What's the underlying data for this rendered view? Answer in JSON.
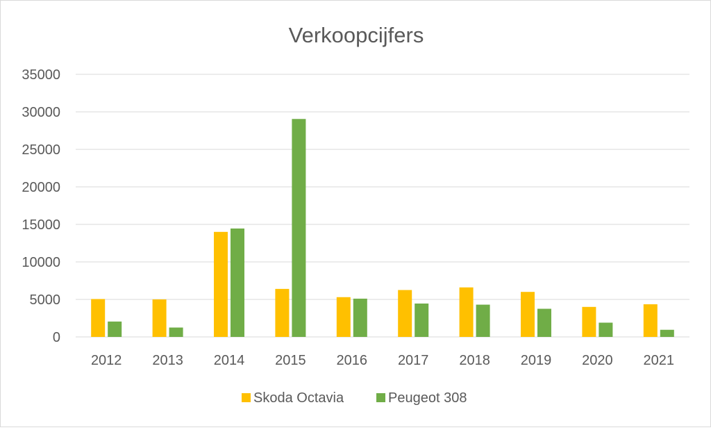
{
  "chart_data": {
    "type": "bar",
    "title": "Verkoopcijfers",
    "xlabel": "",
    "ylabel": "",
    "categories": [
      "2012",
      "2013",
      "2014",
      "2015",
      "2016",
      "2017",
      "2018",
      "2019",
      "2020",
      "2021"
    ],
    "series": [
      {
        "name": "Skoda Octavia",
        "color": "#FFC000",
        "values": [
          5050,
          5000,
          14000,
          6400,
          5300,
          6250,
          6600,
          6000,
          4000,
          4350
        ]
      },
      {
        "name": "Peugeot 308",
        "color": "#70AD47",
        "values": [
          2050,
          1250,
          14450,
          29050,
          5100,
          4450,
          4300,
          3750,
          1900,
          950
        ]
      }
    ],
    "ylim": [
      0,
      35000
    ],
    "yticks": [
      0,
      5000,
      10000,
      15000,
      20000,
      25000,
      30000,
      35000
    ],
    "grid": true,
    "legend_position": "bottom"
  }
}
